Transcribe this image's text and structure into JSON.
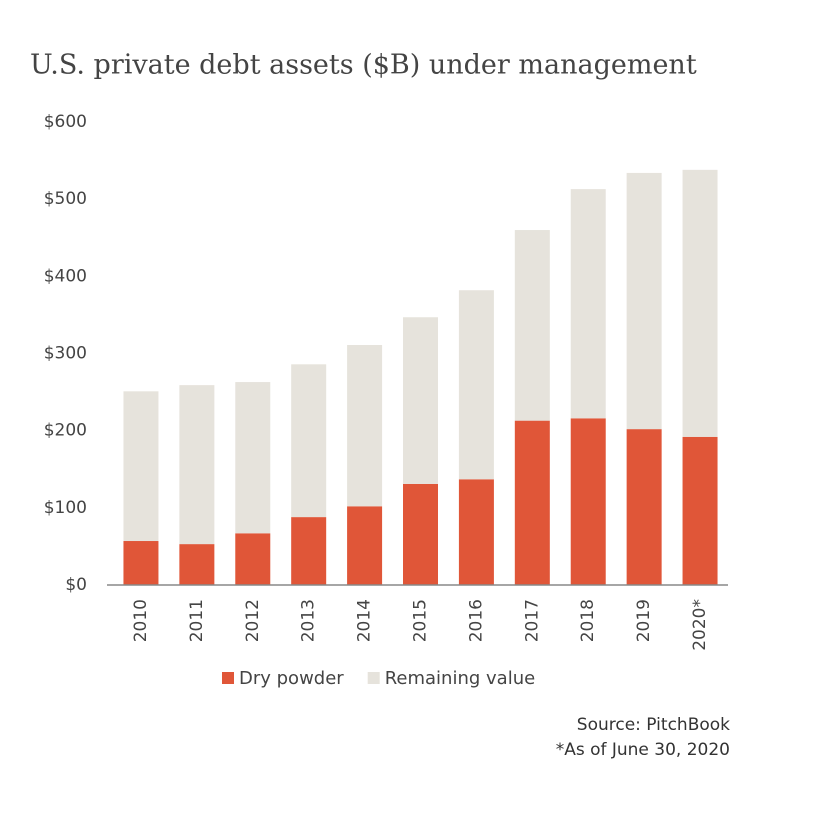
{
  "chart_data": {
    "type": "stacked-bar",
    "title": "U.S. private debt assets ($B) under management",
    "categories": [
      "2010",
      "2011",
      "2012",
      "2013",
      "2014",
      "2015",
      "2016",
      "2017",
      "2018",
      "2019",
      "2020*"
    ],
    "series": [
      {
        "name": "Dry powder",
        "color": "#e05638",
        "values": [
          57,
          53,
          67,
          88,
          102,
          131,
          137,
          213,
          216,
          202,
          192
        ]
      },
      {
        "name": "Remaining value",
        "color": "#e6e3dc",
        "values": [
          194,
          206,
          196,
          198,
          209,
          216,
          245,
          247,
          297,
          332,
          346
        ]
      }
    ],
    "ylim": [
      0,
      600
    ],
    "yticks": [
      {
        "value": 0,
        "label": "$0"
      },
      {
        "value": 100,
        "label": "$100"
      },
      {
        "value": 200,
        "label": "$200"
      },
      {
        "value": 300,
        "label": "$300"
      },
      {
        "value": 400,
        "label": "$400"
      },
      {
        "value": 500,
        "label": "$500"
      },
      {
        "value": 600,
        "label": "$600"
      }
    ],
    "grid": false,
    "legend": "bottom",
    "source": "Source: PitchBook",
    "note": "*As of June 30, 2020"
  }
}
